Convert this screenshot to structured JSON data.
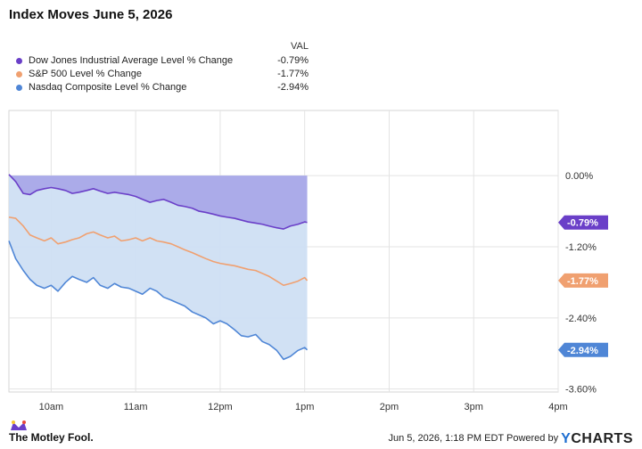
{
  "title": "Index Moves June 5, 2026",
  "legend": {
    "header": "VAL",
    "items": [
      {
        "name": "Dow Jones Industrial Average Level % Change",
        "value": "-0.79%",
        "color": "#6a3fc8"
      },
      {
        "name": "S&P 500 Level % Change",
        "value": "-1.77%",
        "color": "#f0a070"
      },
      {
        "name": "Nasdaq Composite Level % Change",
        "value": "-2.94%",
        "color": "#4f86d6"
      }
    ]
  },
  "chart_data": {
    "type": "line",
    "x_tick_labels": [
      "10am",
      "11am",
      "12pm",
      "1pm",
      "2pm",
      "3pm",
      "4pm"
    ],
    "x_ticks_hours": [
      10,
      11,
      12,
      13,
      14,
      15,
      16
    ],
    "xlim_hours": [
      9.5,
      16
    ],
    "y_tick_labels": [
      "0.00%",
      "-1.20%",
      "-2.40%",
      "-3.60%"
    ],
    "y_ticks": [
      0,
      -1.2,
      -2.4,
      -3.6
    ],
    "ylim": [
      -3.65,
      1.1
    ],
    "end_labels": [
      "-0.79%",
      "-1.77%",
      "-2.94%"
    ],
    "series": [
      {
        "name": "Dow Jones Industrial Average Level % Change",
        "color": "#6a3fc8",
        "fill": "#a9a8e8",
        "x": [
          9.5,
          9.58,
          9.67,
          9.75,
          9.83,
          9.92,
          10.0,
          10.08,
          10.17,
          10.25,
          10.33,
          10.42,
          10.5,
          10.58,
          10.67,
          10.75,
          10.83,
          10.92,
          11.0,
          11.08,
          11.17,
          11.25,
          11.33,
          11.42,
          11.5,
          11.58,
          11.67,
          11.75,
          11.83,
          11.92,
          12.0,
          12.08,
          12.17,
          12.25,
          12.33,
          12.42,
          12.5,
          12.58,
          12.67,
          12.75,
          12.83,
          12.92,
          13.0,
          13.03
        ],
        "values": [
          0.02,
          -0.1,
          -0.3,
          -0.32,
          -0.25,
          -0.22,
          -0.2,
          -0.22,
          -0.25,
          -0.3,
          -0.28,
          -0.25,
          -0.22,
          -0.26,
          -0.3,
          -0.28,
          -0.3,
          -0.32,
          -0.35,
          -0.4,
          -0.45,
          -0.42,
          -0.4,
          -0.45,
          -0.5,
          -0.52,
          -0.55,
          -0.6,
          -0.62,
          -0.65,
          -0.68,
          -0.7,
          -0.72,
          -0.75,
          -0.78,
          -0.8,
          -0.82,
          -0.85,
          -0.88,
          -0.9,
          -0.85,
          -0.82,
          -0.78,
          -0.79
        ]
      },
      {
        "name": "S&P 500 Level % Change",
        "color": "#f0a070",
        "x": [
          9.5,
          9.58,
          9.67,
          9.75,
          9.83,
          9.92,
          10.0,
          10.08,
          10.17,
          10.25,
          10.33,
          10.42,
          10.5,
          10.58,
          10.67,
          10.75,
          10.83,
          10.92,
          11.0,
          11.08,
          11.17,
          11.25,
          11.33,
          11.42,
          11.5,
          11.58,
          11.67,
          11.75,
          11.83,
          11.92,
          12.0,
          12.08,
          12.17,
          12.25,
          12.33,
          12.42,
          12.5,
          12.58,
          12.67,
          12.75,
          12.83,
          12.92,
          13.0,
          13.03
        ],
        "values": [
          -0.7,
          -0.72,
          -0.85,
          -1.0,
          -1.05,
          -1.1,
          -1.05,
          -1.15,
          -1.12,
          -1.08,
          -1.05,
          -0.98,
          -0.95,
          -1.0,
          -1.05,
          -1.02,
          -1.1,
          -1.08,
          -1.05,
          -1.1,
          -1.05,
          -1.1,
          -1.12,
          -1.15,
          -1.2,
          -1.25,
          -1.3,
          -1.35,
          -1.4,
          -1.45,
          -1.48,
          -1.5,
          -1.52,
          -1.55,
          -1.58,
          -1.6,
          -1.65,
          -1.7,
          -1.78,
          -1.85,
          -1.82,
          -1.78,
          -1.72,
          -1.77
        ]
      },
      {
        "name": "Nasdaq Composite Level % Change",
        "color": "#4f86d6",
        "fill": "#cfdff3",
        "x": [
          9.5,
          9.58,
          9.67,
          9.75,
          9.83,
          9.92,
          10.0,
          10.08,
          10.17,
          10.25,
          10.33,
          10.42,
          10.5,
          10.58,
          10.67,
          10.75,
          10.83,
          10.92,
          11.0,
          11.08,
          11.17,
          11.25,
          11.33,
          11.42,
          11.5,
          11.58,
          11.67,
          11.75,
          11.83,
          11.92,
          12.0,
          12.08,
          12.17,
          12.25,
          12.33,
          12.42,
          12.5,
          12.58,
          12.67,
          12.75,
          12.83,
          12.92,
          13.0,
          13.03
        ],
        "values": [
          -1.1,
          -1.4,
          -1.6,
          -1.75,
          -1.85,
          -1.9,
          -1.85,
          -1.95,
          -1.8,
          -1.7,
          -1.75,
          -1.8,
          -1.72,
          -1.85,
          -1.9,
          -1.82,
          -1.88,
          -1.9,
          -1.95,
          -2.0,
          -1.9,
          -1.95,
          -2.05,
          -2.1,
          -2.15,
          -2.2,
          -2.3,
          -2.35,
          -2.4,
          -2.5,
          -2.45,
          -2.5,
          -2.6,
          -2.7,
          -2.72,
          -2.68,
          -2.8,
          -2.85,
          -2.95,
          -3.1,
          -3.05,
          -2.95,
          -2.9,
          -2.94
        ]
      }
    ]
  },
  "footer": {
    "brand_left": "The Motley Fool.",
    "timestamp": "Jun 5, 2026, 1:18 PM EDT  Powered by",
    "brand_right_y": "Y",
    "brand_right_rest": "CHARTS"
  }
}
